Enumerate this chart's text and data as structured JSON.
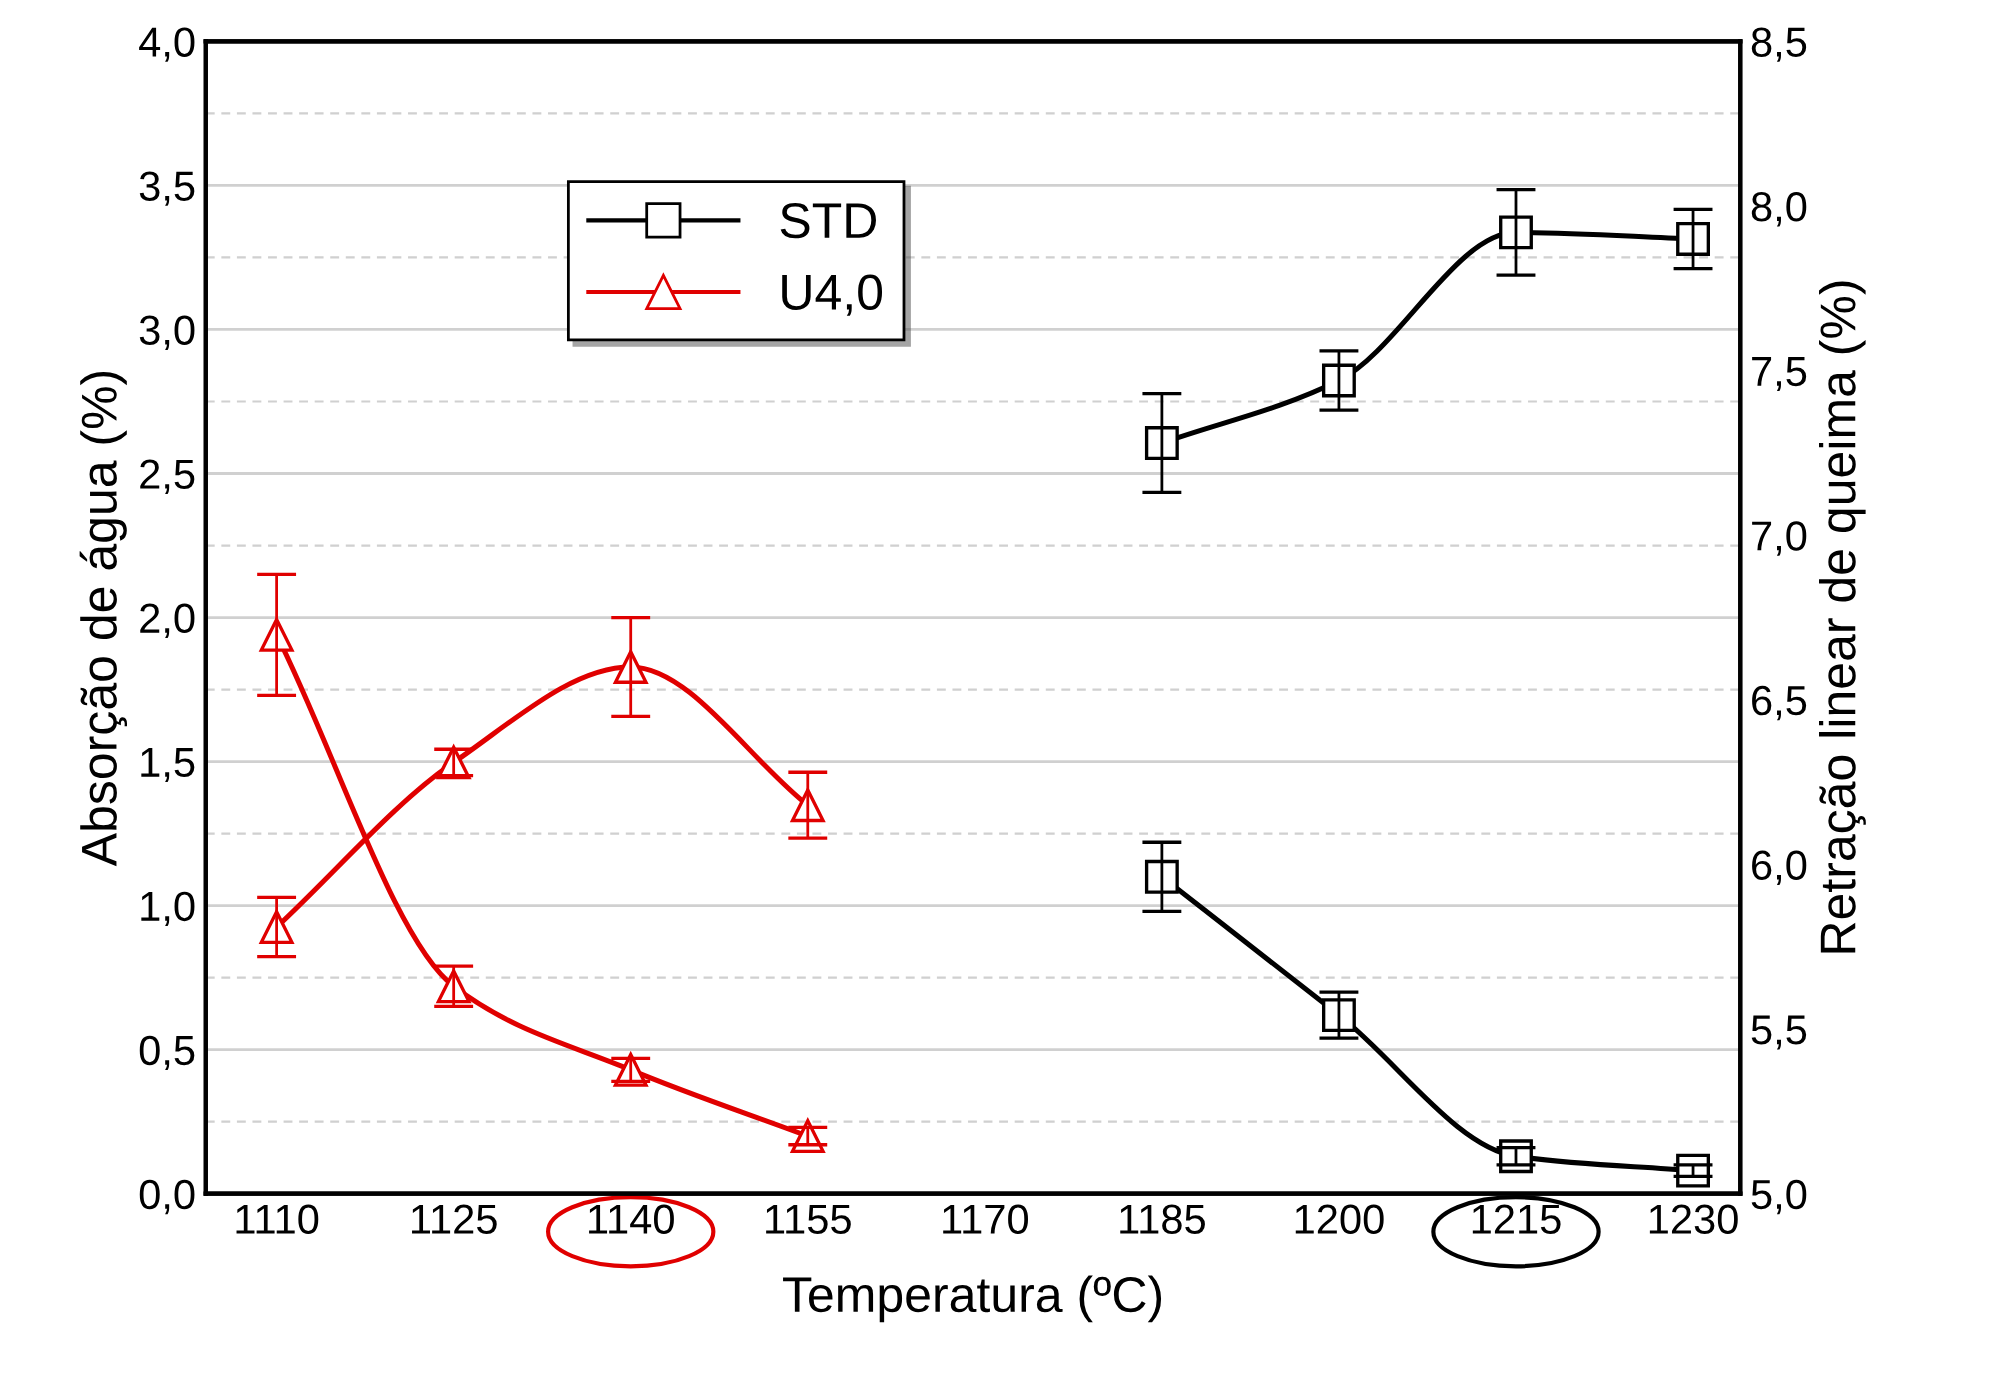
{
  "chart_data": {
    "type": "line",
    "xlabel": "Temperatura (ºC)",
    "ylabel": "Absorção de água (%)",
    "y2label": "Retração linear de queima (%)",
    "xlim": [
      1104,
      1234
    ],
    "xticks": [
      1110,
      1125,
      1140,
      1155,
      1170,
      1185,
      1200,
      1215,
      1230
    ],
    "ylim": [
      0,
      4
    ],
    "yticks": [
      {
        "value": 0,
        "label": "0,0"
      },
      {
        "value": 0.25,
        "label": null
      },
      {
        "value": 0.5,
        "label": "0,5"
      },
      {
        "value": 0.75,
        "label": null
      },
      {
        "value": 1,
        "label": "1,0"
      },
      {
        "value": 1.25,
        "label": null
      },
      {
        "value": 1.5,
        "label": "1,5"
      },
      {
        "value": 1.75,
        "label": null
      },
      {
        "value": 2,
        "label": "2,0"
      },
      {
        "value": 2.25,
        "label": null
      },
      {
        "value": 2.5,
        "label": "2,5"
      },
      {
        "value": 2.75,
        "label": null
      },
      {
        "value": 3,
        "label": "3,0"
      },
      {
        "value": 3.25,
        "label": null
      },
      {
        "value": 3.5,
        "label": "3,5"
      },
      {
        "value": 3.75,
        "label": null
      },
      {
        "value": 4,
        "label": "4,0"
      }
    ],
    "y2lim": [
      5,
      8.5
    ],
    "y2ticks": [
      {
        "value": 5,
        "label": "5,0"
      },
      {
        "value": 5.5,
        "label": "5,5"
      },
      {
        "value": 6,
        "label": "6,0"
      },
      {
        "value": 6.5,
        "label": "6,5"
      },
      {
        "value": 7,
        "label": "7,0"
      },
      {
        "value": 7.5,
        "label": "7,5"
      },
      {
        "value": 8,
        "label": "8,0"
      },
      {
        "value": 8.5,
        "label": "8,5"
      }
    ],
    "grid": "y",
    "legend": "top left",
    "line_style": "solid",
    "series": [
      {
        "name": "STD",
        "color": "#000000",
        "marker": "square",
        "axis": "y",
        "x": [
          1185,
          1200,
          1215,
          1230
        ],
        "values": [
          1.1,
          0.62,
          0.13,
          0.08
        ],
        "errors": [
          0.12,
          0.08,
          0.03,
          0.02
        ]
      },
      {
        "color": "#000000",
        "marker": "square",
        "axis": "y2",
        "x": [
          1185,
          1200,
          1215,
          1230
        ],
        "values": [
          7.28,
          7.47,
          7.92,
          7.9
        ],
        "errors": [
          0.15,
          0.09,
          0.13,
          0.09
        ]
      },
      {
        "name": "U4,0",
        "color": "#e00000",
        "marker": "triangle",
        "axis": "y",
        "x": [
          1110,
          1125,
          1140,
          1155
        ],
        "values": [
          1.94,
          0.72,
          0.43,
          0.2
        ],
        "errors": [
          0.21,
          0.07,
          0.04,
          0.03
        ]
      },
      {
        "color": "#e00000",
        "marker": "triangle",
        "axis": "y2",
        "x": [
          1110,
          1125,
          1140,
          1155
        ],
        "values": [
          5.81,
          6.31,
          6.6,
          6.18
        ],
        "errors": [
          0.09,
          0.04,
          0.15,
          0.1
        ]
      }
    ]
  }
}
